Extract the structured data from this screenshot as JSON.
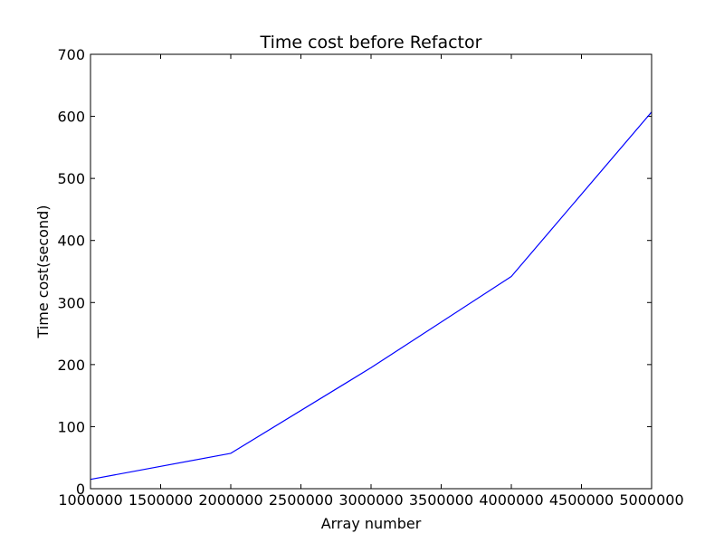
{
  "chart_data": {
    "type": "line",
    "title": "Time cost before Refactor",
    "xlabel": "Array number",
    "ylabel": "Time cost(second)",
    "xlim": [
      1000000,
      5000000
    ],
    "ylim": [
      0,
      700
    ],
    "xticks": [
      1000000,
      1500000,
      2000000,
      2500000,
      3000000,
      3500000,
      4000000,
      4500000,
      5000000
    ],
    "yticks": [
      0,
      100,
      200,
      300,
      400,
      500,
      600,
      700
    ],
    "grid": false,
    "series": [
      {
        "color": "#0000ff",
        "x": [
          1000000,
          2000000,
          3000000,
          4000000,
          5000000
        ],
        "y": [
          15,
          57,
          195,
          342,
          607
        ]
      }
    ]
  }
}
